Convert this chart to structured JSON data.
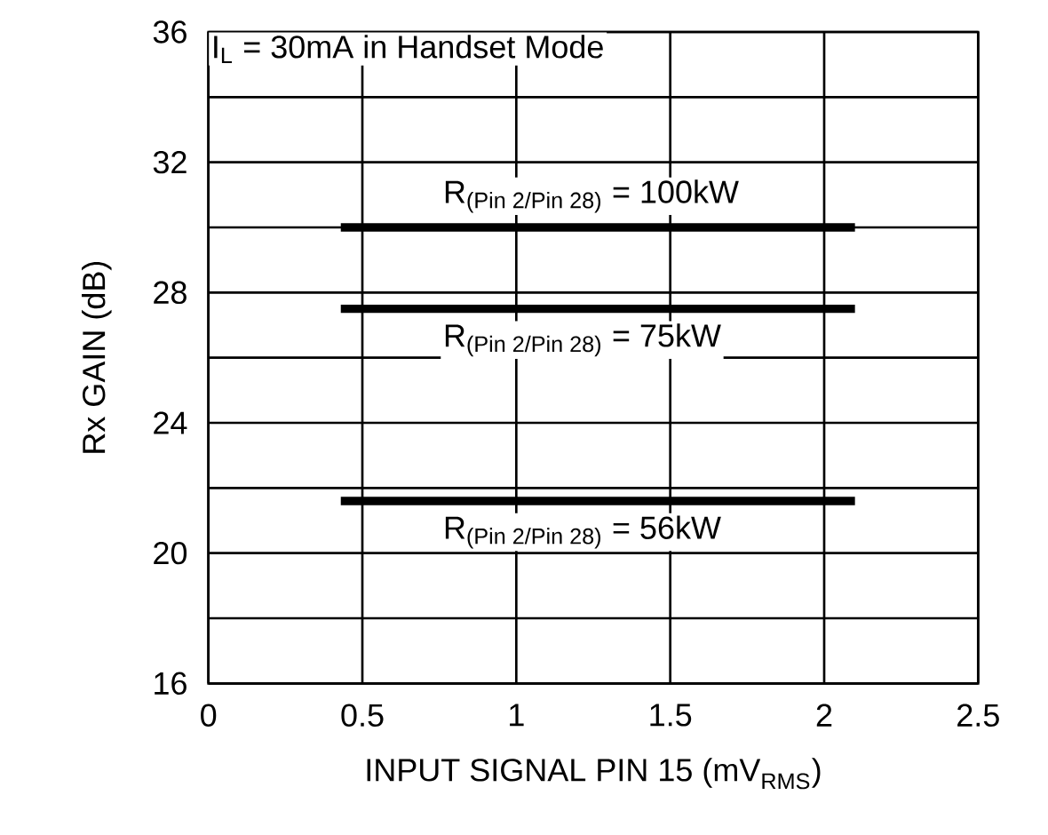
{
  "chart_data": {
    "type": "line",
    "xlabel": "\\text{INPUT SIGNAL PIN 15 (mV}_{\\text{RMS}}\\text{)}",
    "ylabel": "Rx GAIN (dB)",
    "annotations": [
      "\\text{I}_{\\text{L}}\\text{ = 30mA in Handset Mode}"
    ],
    "x": [
      0.43,
      2.1
    ],
    "series": [
      {
        "name": "\\text{R}_{\\text{(Pin 2/Pin 28)}}\\text{ = 100kW}",
        "color": "#000000",
        "values": [
          30,
          30
        ]
      },
      {
        "name": "\\text{R}_{\\text{(Pin 2/Pin 28)}}\\text{ = 75kW}",
        "color": "#000000",
        "values": [
          27.5,
          27.5
        ]
      },
      {
        "name": "\\text{R}_{\\text{(Pin 2/Pin 28)}}\\text{ = 56kW}",
        "color": "#000000",
        "values": [
          21.6,
          21.6
        ]
      }
    ],
    "xlim": [
      0,
      2.5
    ],
    "xticks": [
      0,
      0.5,
      1,
      1.5,
      2,
      2.5
    ],
    "ylim": [
      16,
      36
    ],
    "yticks": [
      16,
      {
        "value": 18,
        "label": null
      },
      20,
      {
        "value": 22,
        "label": null
      },
      24,
      {
        "value": 26,
        "label": null
      },
      28,
      {
        "value": 30,
        "label": null
      },
      32,
      {
        "value": 34,
        "label": null
      },
      36
    ],
    "grid": true,
    "legend": false,
    "marker": "none",
    "line_style": "solid"
  }
}
